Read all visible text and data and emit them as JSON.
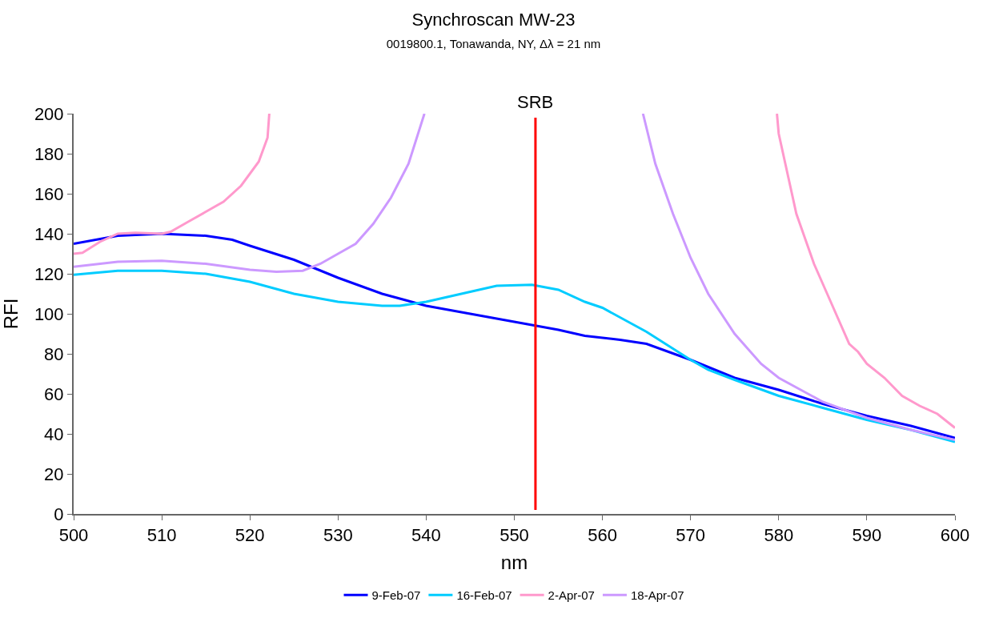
{
  "chart_data": {
    "type": "line",
    "title": "Synchroscan MW-23",
    "subtitle": "0019800.1, Tonawanda, NY, Δλ = 21 nm",
    "xlabel": "nm",
    "ylabel": "RFI",
    "xlim": [
      500,
      600
    ],
    "xticks": [
      500,
      510,
      520,
      530,
      540,
      550,
      560,
      570,
      580,
      590,
      600
    ],
    "ylim": [
      0,
      200
    ],
    "yticks": [
      0,
      20,
      40,
      60,
      80,
      100,
      120,
      140,
      160,
      180,
      200
    ],
    "grid": false,
    "legend": "bottom",
    "line_style": "solid",
    "marker": "none",
    "ref_lines": [
      {
        "axis": "x",
        "value": 552.4,
        "label": "SRB",
        "color": "#ff0000"
      }
    ],
    "series": [
      {
        "name": "9-Feb-07",
        "color": "#0000ff",
        "x": [
          500,
          505,
          510,
          515,
          518,
          520,
          525,
          530,
          535,
          540,
          545,
          550,
          555,
          558,
          562,
          565,
          570,
          575,
          580,
          585,
          590,
          595,
          600
        ],
        "values": [
          135,
          139,
          140,
          139,
          137,
          134,
          127,
          118,
          110,
          104,
          100,
          96,
          92,
          89,
          87,
          85,
          77,
          68,
          62,
          55,
          49,
          44,
          38
        ]
      },
      {
        "name": "16-Feb-07",
        "color": "#00ccff",
        "x": [
          500,
          505,
          510,
          515,
          520,
          525,
          530,
          535,
          537,
          540,
          545,
          548,
          552,
          555,
          558,
          560,
          565,
          570,
          572,
          575,
          580,
          585,
          590,
          595,
          600
        ],
        "values": [
          119.5,
          121.5,
          121.5,
          120,
          116,
          110,
          106,
          104,
          104,
          106,
          111,
          114,
          114.5,
          112,
          106,
          103,
          91,
          77,
          72,
          67,
          59,
          53,
          47,
          42,
          36
        ]
      },
      {
        "name": "2-Apr-07",
        "color": "#ff99cc",
        "x": [
          500,
          501,
          503,
          505,
          507,
          510,
          511,
          513,
          515,
          517,
          519,
          521,
          522,
          522.2,
          550,
          579.8,
          580,
          582,
          584,
          586,
          588,
          589,
          590,
          592,
          594,
          596,
          598,
          600
        ],
        "values": [
          130,
          130.5,
          136,
          140,
          140.5,
          140,
          141,
          146,
          151,
          156,
          164,
          176,
          188,
          200,
          null,
          200,
          190,
          150,
          125,
          105,
          85,
          81,
          75,
          68,
          59,
          54,
          50,
          43
        ]
      },
      {
        "name": "18-Apr-07",
        "color": "#cc99ff",
        "x": [
          500,
          505,
          510,
          515,
          520,
          523,
          526,
          528,
          530,
          532,
          534,
          536,
          538,
          539.8,
          552,
          564.6,
          566,
          568,
          570,
          572,
          575,
          578,
          580,
          585,
          590,
          595,
          600
        ],
        "values": [
          123.5,
          126,
          126.5,
          125,
          122,
          121,
          121.5,
          125,
          130,
          135,
          145,
          158,
          175,
          200,
          null,
          200,
          175,
          150,
          128,
          110,
          90,
          75,
          68,
          56,
          48,
          42,
          37
        ]
      }
    ]
  }
}
